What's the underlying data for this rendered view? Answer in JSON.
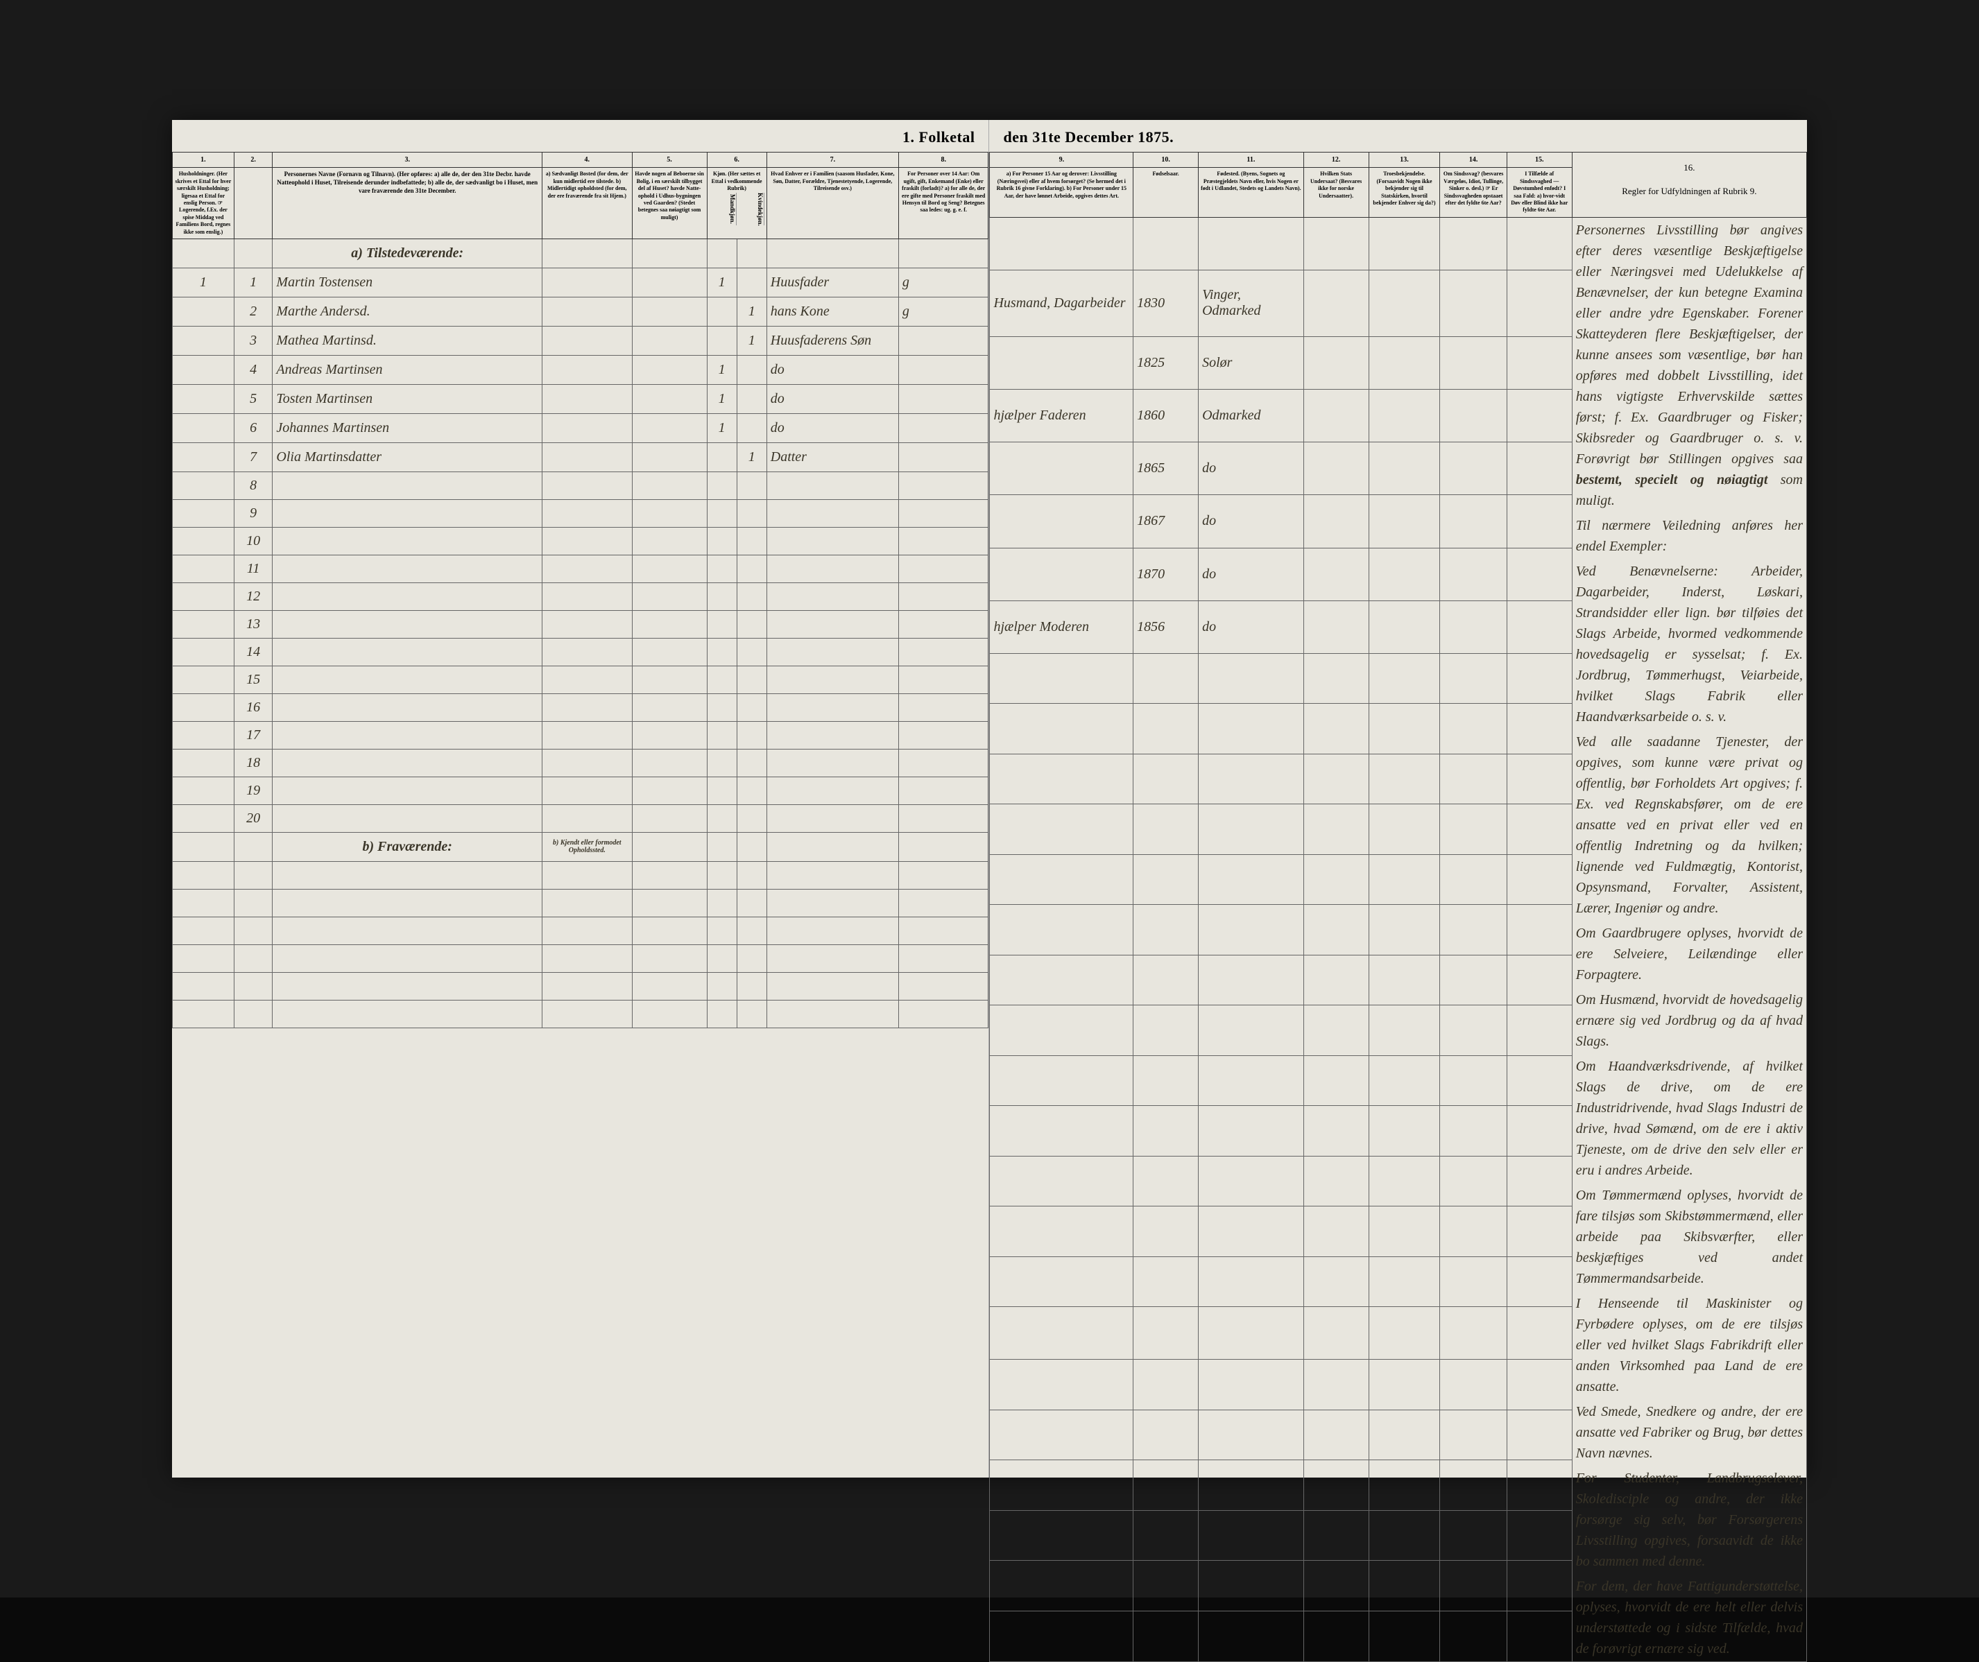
{
  "document": {
    "title_left": "1. Folketal",
    "title_right": "den 31te December 1875.",
    "background_color": "#e8e6de",
    "text_color": "#3a3528",
    "border_color": "#333333"
  },
  "columns": {
    "col1": {
      "num": "1.",
      "header": "Husholdninger.\n(Her skrives et Ettal for hver særskilt Husholdning; ligesaa et Ettal for enslig Person.\n☞ Logerende, f.Ex. der spise Middag ved Familiens Bord, regnes ikke som enslig.)"
    },
    "col2": {
      "num": "2.",
      "header": "Nr."
    },
    "col3": {
      "num": "3.",
      "header": "Personernes Navne (Fornavn og Tilnavn).\n(Her opføres:\na) alle de, der den 31te Decbr. havde Natteophold i Huset, Tilreisende derunder indbefattede;\nb) alle de, der sædvanligt bo i Huset, men vare fraværende den 31te December."
    },
    "col4": {
      "num": "4.",
      "header": "a) Sædvanligt Bosted (for dem, der kun midlertid ere tilstede.\nb) Midlertidigt opholdsted (for dem, der ere fraværende fra sit Hjem.)"
    },
    "col5": {
      "num": "5.",
      "header": "Havde nogen af Beboerne sin Bolig, i en særskilt tilbygget del af Huset? havde Natte-ophold i Udhus-bygningen ved Gaarden? (Stedet betegnes saa nøiagtigt som muligt)"
    },
    "col6": {
      "num": "6.",
      "header": "Kjøn.\n(Her sættes et Ettal i vedkommende Rubrik)",
      "sub_m": "Mandkjøn.",
      "sub_k": "Kvindekjøn."
    },
    "col7": {
      "num": "7.",
      "header": "Hvad Enhver er i Familien\n(saasom Husfader, Kone, Søn, Datter, Forældre, Tjenestetyende, Logerende, Tilreisende osv.)"
    },
    "col8": {
      "num": "8.",
      "header": "For Personer over 14 Aar:\nOm ugift, gift, Enkemand (Enke) eller fraskilt (forladt)?\na) for alle de, der ere gifte med Personer fraskilt med Hensyn til Bord og Seng?\nBetegnes saa ledes: ug. g. e. f."
    },
    "col9": {
      "num": "9.",
      "header": "a) For Personer 15 Aar og derover: Livsstilling (Næringsvei) eller af hvem forsørget? (Se hermed det i Rubrik 16 givne Forklaring).\nb) For Personer under 15 Aar, der have lønnet Arbeide, opgives dettes Art."
    },
    "col10": {
      "num": "10.",
      "header": "Fødselsaar."
    },
    "col11": {
      "num": "11.",
      "header": "Fødested.\n(Byens, Sognets og Præstegjeldets Navn eller, hvis Nogen er født i Udlandet, Stedets og Landets Navn)."
    },
    "col12": {
      "num": "12.",
      "header": "Hvilken Stats Undersaat?\n(Besvares ikke for norske Undersaatter)."
    },
    "col13": {
      "num": "13.",
      "header": "Troesbekjendelse.\n(Forsaavidt Nogen ikke bekjender sig til Statskirken, hvortil bekjender Enhver sig da?)"
    },
    "col14": {
      "num": "14.",
      "header": "Om Sindssvag?\n(besvares Værgeløs, Idiot, Tullinge, Sinker o. desl.)\n☞ Er Sindssvagheden opstaaet efter det fyldte 6te Aar?"
    },
    "col15": {
      "num": "15.",
      "header": "I Tilfælde af Sindssvaghed — Døvstumhed enfødt?\nI saa Fald: a) hvor-vidt Døv eller Blind ikke har fyldte 6te Aar."
    },
    "col16": {
      "num": "16.",
      "header": "Regler for Udfyldningen af Rubrik 9."
    }
  },
  "sections": {
    "a_present": "a) Tilstedeværende:",
    "b_absent": "b) Fraværende:",
    "b_known": "b) Kjendt eller formodet Opholdssted."
  },
  "rows": [
    {
      "hh": "1",
      "num": "1",
      "name": "Martin Tostensen",
      "gender_m": "1",
      "gender_k": "",
      "relation": "Huusfader",
      "marital": "g",
      "occupation": "Husmand, Dagarbeider",
      "year": "1830",
      "birthplace": "Vinger, Odmarked"
    },
    {
      "hh": "",
      "num": "2",
      "name": "Marthe Andersd.",
      "gender_m": "",
      "gender_k": "1",
      "relation": "hans Kone",
      "marital": "g",
      "occupation": "",
      "year": "1825",
      "birthplace": "Solør"
    },
    {
      "hh": "",
      "num": "3",
      "name": "Mathea Martinsd.",
      "gender_m": "",
      "gender_k": "1",
      "relation": "Huusfaderens Søn",
      "marital": "",
      "occupation": "hjælper Faderen",
      "year": "1860",
      "birthplace": "Odmarked"
    },
    {
      "hh": "",
      "num": "4",
      "name": "Andreas Martinsen",
      "gender_m": "1",
      "gender_k": "",
      "relation": "do",
      "marital": "",
      "occupation": "",
      "year": "1865",
      "birthplace": "do"
    },
    {
      "hh": "",
      "num": "5",
      "name": "Tosten Martinsen",
      "gender_m": "1",
      "gender_k": "",
      "relation": "do",
      "marital": "",
      "occupation": "",
      "year": "1867",
      "birthplace": "do"
    },
    {
      "hh": "",
      "num": "6",
      "name": "Johannes Martinsen",
      "gender_m": "1",
      "gender_k": "",
      "relation": "do",
      "marital": "",
      "occupation": "",
      "year": "1870",
      "birthplace": "do"
    },
    {
      "hh": "",
      "num": "7",
      "name": "Olia Martinsdatter",
      "gender_m": "",
      "gender_k": "1",
      "relation": "Datter",
      "marital": "",
      "occupation": "hjælper Moderen",
      "year": "1856",
      "birthplace": "do"
    }
  ],
  "empty_rows": [
    "8",
    "9",
    "10",
    "11",
    "12",
    "13",
    "14",
    "15",
    "16",
    "17",
    "18",
    "19",
    "20"
  ],
  "absent_rows": 6,
  "rules_text": {
    "p1": "Personernes Livsstilling bør angives efter deres væsentlige Beskjæftigelse eller Næringsvei med Udelukkelse af Benævnelser, der kun betegne Examina eller andre ydre Egenskaber. Forener Skatteyderen flere Beskjæftigelser, der kunne ansees som væsentlige, bør han opføres med dobbelt Livsstilling, idet hans vigtigste Erhvervskilde sættes først; f. Ex. Gaardbruger og Fisker; Skibsreder og Gaardbruger o. s. v. Forøvrigt bør Stillingen opgives saa",
    "p1b": "bestemt, specielt og nøiagtigt",
    "p1c": "som muligt.",
    "p2": "Til nærmere Veiledning anføres her endel Exempler:",
    "p3": "Ved Benævnelserne: Arbeider, Dagarbeider, Inderst, Løskari, Strandsidder eller lign. bør tilføies det Slags Arbeide, hvormed vedkommende hovedsagelig er sysselsat; f. Ex. Jordbrug, Tømmerhugst, Veiarbeide, hvilket Slags Fabrik eller Haandværksarbeide o. s. v.",
    "p4": "Ved alle saadanne Tjenester, der opgives, som kunne være privat og offentlig, bør Forholdets Art opgives; f. Ex. ved Regnskabsfører, om de ere ansatte ved en privat eller ved en offentlig Indretning og da hvilken; lignende ved Fuldmægtig, Kontorist, Opsynsmand, Forvalter, Assistent, Lærer, Ingeniør og andre.",
    "p5": "Om Gaardbrugere oplyses, hvorvidt de ere Selveiere, Leilændinge eller Forpagtere.",
    "p6": "Om Husmænd, hvorvidt de hovedsagelig ernære sig ved Jordbrug og da af hvad Slags.",
    "p7": "Om Haandværksdrivende, af hvilket Slags de drive, om de ere Industridrivende, hvad Slags Industri de drive, hvad Sømænd, om de ere i aktiv Tjeneste, om de drive den selv eller er eru i andres Arbeide.",
    "p8": "Om Tømmermænd oplyses, hvorvidt de fare tilsjøs som Skibstømmermænd, eller arbeide paa Skibsværfter, eller beskjæftiges ved andet Tømmermandsarbeide.",
    "p9": "I Henseende til Maskinister og Fyrbødere oplyses, om de ere tilsjøs eller ved hvilket Slags Fabrikdrift eller anden Virksomhed paa Land de ere ansatte.",
    "p10": "Ved Smede, Snedkere og andre, der ere ansatte ved Fabriker og Brug, bør dettes Navn nævnes.",
    "p11": "For Studenter, Landbrugselever, Skoledisciple og andre, der ikke forsørge sig selv, bør Forsørgerens Livsstilling opgives, forsaavidt de ikke bo sammen med denne.",
    "p12": "For dem, der have Fattigunderstøttelse, oplyses, hvorvidt de ere helt eller delvis understøttede og i sidste Tilfælde, hvad de forøvrigt ernære sig ved."
  }
}
